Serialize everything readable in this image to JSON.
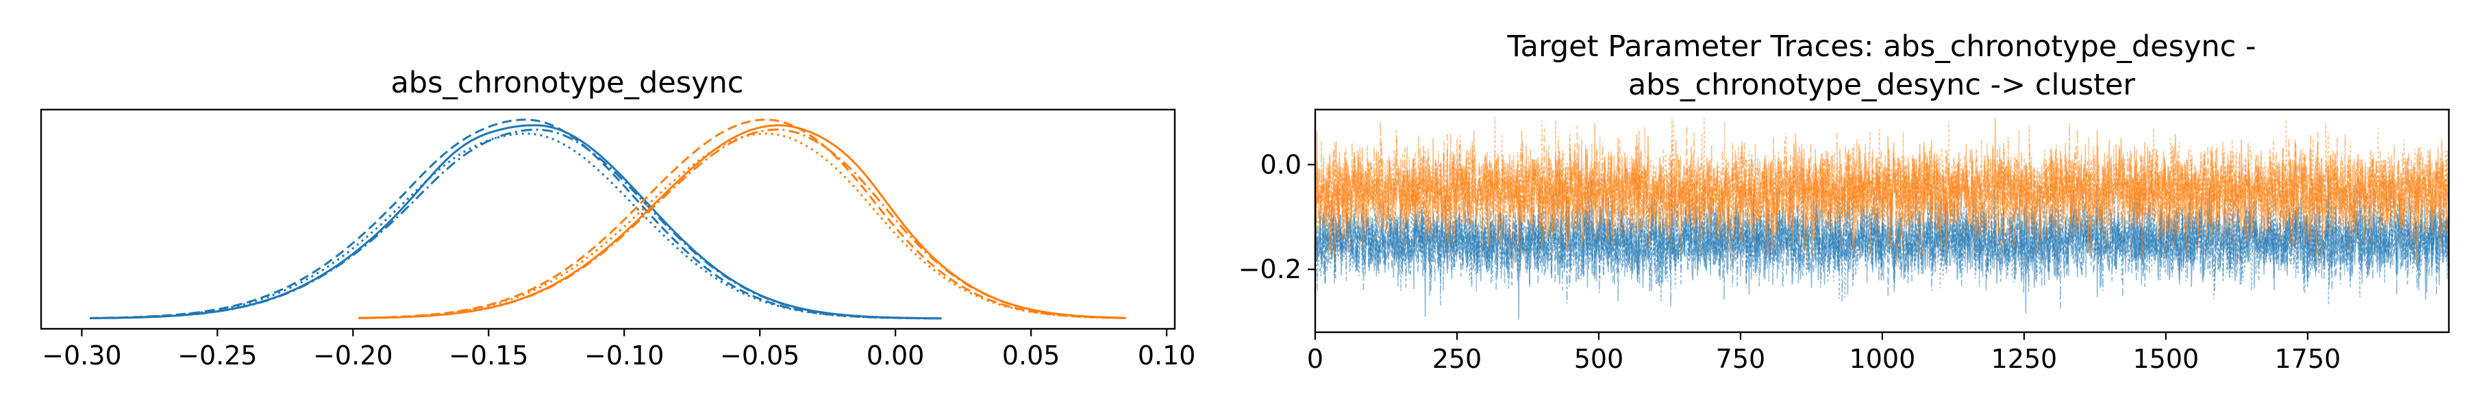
{
  "chart_data": [
    {
      "type": "line",
      "subtype": "kde",
      "title": "abs_chronotype_desync",
      "xlabel": "",
      "ylabel": "",
      "xlim": [
        -0.315,
        0.103
      ],
      "x_ticks": [
        -0.3,
        -0.25,
        -0.2,
        -0.15,
        -0.1,
        -0.05,
        0.0,
        0.05,
        0.1
      ],
      "x_tick_labels": [
        "−0.30",
        "−0.25",
        "−0.20",
        "−0.15",
        "−0.10",
        "−0.05",
        "0.00",
        "0.05",
        "0.10"
      ],
      "y_ticks_visible": false,
      "grid": false,
      "colors": [
        "#1f77b4",
        "#ff7f0e"
      ],
      "line_styles": [
        "solid",
        "dashed",
        "dotted",
        "dashdot"
      ],
      "series": [
        {
          "color": "#1f77b4",
          "mode_x": -0.135,
          "range": [
            -0.297,
            0.017
          ],
          "chains": 4
        },
        {
          "color": "#ff7f0e",
          "mode_x": -0.047,
          "range": [
            -0.198,
            0.085
          ],
          "chains": 4
        }
      ]
    },
    {
      "type": "line",
      "subtype": "trace",
      "title": "Target Parameter Traces: abs_chronotype_desync -\nabs_chronotype_desync -> cluster",
      "title_lines": [
        "Target Parameter Traces: abs_chronotype_desync -",
        "abs_chronotype_desync -> cluster"
      ],
      "xlabel": "",
      "ylabel": "",
      "xlim": [
        0,
        1999
      ],
      "ylim": [
        -0.32,
        0.105
      ],
      "x_ticks": [
        0,
        250,
        500,
        750,
        1000,
        1250,
        1500,
        1750
      ],
      "x_tick_labels": [
        "0",
        "250",
        "500",
        "750",
        "1000",
        "1250",
        "1500",
        "1750"
      ],
      "y_ticks": [
        0.0,
        -0.2
      ],
      "y_tick_labels": [
        "0.0",
        "−0.2"
      ],
      "grid": false,
      "draws": 2000,
      "series": [
        {
          "color": "#1f77b4",
          "mean": -0.145,
          "sd": 0.036,
          "min": -0.3
        },
        {
          "color": "#ff7f0e",
          "mean": -0.05,
          "sd": 0.042,
          "max": 0.09
        }
      ]
    }
  ]
}
